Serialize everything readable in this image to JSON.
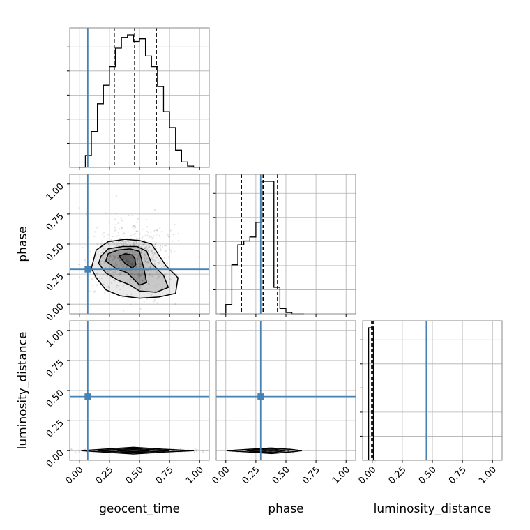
{
  "chart_data": {
    "type": "corner",
    "parameters": [
      "geocent_time",
      "phase",
      "luminosity_distance"
    ],
    "axis_labels": {
      "geocent_time": "geocent_time",
      "phase": "phase",
      "luminosity_distance": "luminosity_distance"
    },
    "ticks": [
      0.0,
      0.25,
      0.5,
      0.75,
      1.0
    ],
    "tick_labels": [
      "0.00",
      "0.25",
      "0.50",
      "0.75",
      "1.00"
    ],
    "grid": true,
    "colors": {
      "truth": "#4682b4",
      "hist": "#000000",
      "contour": "#000000",
      "grid": "#b0b0b0"
    },
    "truths": {
      "geocent_time": 0.07,
      "phase": 0.29,
      "luminosity_distance": 0.45
    },
    "ranges": {
      "geocent_time": [
        -0.08,
        1.08
      ],
      "phase": [
        -0.08,
        1.08
      ],
      "luminosity_distance": [
        -0.08,
        1.08
      ]
    },
    "quantiles": {
      "geocent_time": [
        0.29,
        0.46,
        0.64
      ],
      "phase": [
        0.13,
        0.31,
        0.43
      ],
      "luminosity_distance": [
        -0.005,
        0.002,
        0.012
      ]
    },
    "histograms": {
      "geocent_time": {
        "edges": [
          0.0,
          0.05,
          0.1,
          0.15,
          0.2,
          0.25,
          0.3,
          0.35,
          0.4,
          0.45,
          0.5,
          0.55,
          0.6,
          0.65,
          0.7,
          0.75,
          0.8,
          0.85,
          0.9,
          0.95,
          1.0
        ],
        "counts": [
          0,
          0.09,
          0.27,
          0.48,
          0.62,
          0.76,
          0.9,
          0.98,
          1.0,
          0.95,
          0.97,
          0.84,
          0.76,
          0.61,
          0.42,
          0.3,
          0.13,
          0.04,
          0.01,
          0
        ]
      },
      "phase": {
        "edges": [
          -0.05,
          0.0,
          0.05,
          0.1,
          0.15,
          0.2,
          0.25,
          0.3,
          0.35,
          0.4,
          0.45,
          0.5,
          0.55,
          0.6,
          0.65
        ],
        "counts": [
          0,
          0.07,
          0.37,
          0.52,
          0.55,
          0.58,
          0.69,
          1.0,
          1.0,
          0.2,
          0.04,
          0.01,
          0,
          0
        ]
      },
      "luminosity_distance": {
        "edges": [
          -0.03,
          -0.01,
          0.01,
          0.03
        ],
        "counts": [
          1.0,
          1.0,
          0
        ]
      }
    },
    "scatter_panels": [
      {
        "x": "geocent_time",
        "y": "phase",
        "density_center": [
          0.44,
          0.38
        ],
        "density_spread": [
          0.16,
          0.15
        ],
        "contours": [
          [
            [
              0.1,
              0.3
            ],
            [
              0.14,
              0.22
            ],
            [
              0.22,
              0.12
            ],
            [
              0.34,
              0.07
            ],
            [
              0.5,
              0.05
            ],
            [
              0.66,
              0.06
            ],
            [
              0.8,
              0.09
            ],
            [
              0.82,
              0.22
            ],
            [
              0.72,
              0.32
            ],
            [
              0.64,
              0.44
            ],
            [
              0.6,
              0.5
            ],
            [
              0.5,
              0.53
            ],
            [
              0.38,
              0.54
            ],
            [
              0.24,
              0.52
            ],
            [
              0.14,
              0.45
            ]
          ],
          [
            [
              0.16,
              0.34
            ],
            [
              0.22,
              0.26
            ],
            [
              0.32,
              0.2
            ],
            [
              0.42,
              0.16
            ],
            [
              0.5,
              0.11
            ],
            [
              0.64,
              0.1
            ],
            [
              0.74,
              0.14
            ],
            [
              0.7,
              0.24
            ],
            [
              0.6,
              0.34
            ],
            [
              0.56,
              0.44
            ],
            [
              0.48,
              0.48
            ],
            [
              0.36,
              0.48
            ],
            [
              0.24,
              0.46
            ],
            [
              0.18,
              0.4
            ]
          ],
          [
            [
              0.22,
              0.36
            ],
            [
              0.3,
              0.3
            ],
            [
              0.4,
              0.26
            ],
            [
              0.46,
              0.2
            ],
            [
              0.5,
              0.16
            ],
            [
              0.56,
              0.18
            ],
            [
              0.54,
              0.28
            ],
            [
              0.52,
              0.36
            ],
            [
              0.5,
              0.44
            ],
            [
              0.42,
              0.46
            ],
            [
              0.32,
              0.45
            ],
            [
              0.24,
              0.42
            ]
          ],
          [
            [
              0.33,
              0.4
            ],
            [
              0.38,
              0.34
            ],
            [
              0.44,
              0.3
            ],
            [
              0.47,
              0.33
            ],
            [
              0.46,
              0.38
            ],
            [
              0.44,
              0.41
            ],
            [
              0.38,
              0.42
            ]
          ]
        ]
      },
      {
        "x": "geocent_time",
        "y": "luminosity_distance",
        "density_center": [
          0.45,
          0.0
        ],
        "density_spread": [
          0.2,
          0.008
        ],
        "contours": [
          [
            [
              0.02,
              0.0
            ],
            [
              0.2,
              -0.012
            ],
            [
              0.45,
              -0.028
            ],
            [
              0.7,
              -0.012
            ],
            [
              0.95,
              0.0
            ],
            [
              0.7,
              0.012
            ],
            [
              0.45,
              0.028
            ],
            [
              0.2,
              0.012
            ]
          ],
          [
            [
              0.16,
              0.0
            ],
            [
              0.3,
              -0.009
            ],
            [
              0.45,
              -0.018
            ],
            [
              0.6,
              -0.009
            ],
            [
              0.74,
              0.0
            ],
            [
              0.6,
              0.009
            ],
            [
              0.45,
              0.018
            ],
            [
              0.3,
              0.009
            ]
          ],
          [
            [
              0.32,
              0.0
            ],
            [
              0.45,
              -0.01
            ],
            [
              0.58,
              0.0
            ],
            [
              0.45,
              0.01
            ]
          ]
        ]
      },
      {
        "x": "phase",
        "y": "luminosity_distance",
        "density_center": [
          0.35,
          0.0
        ],
        "density_spread": [
          0.1,
          0.007
        ],
        "contours": [
          [
            [
              0.01,
              0.0
            ],
            [
              0.2,
              -0.012
            ],
            [
              0.38,
              -0.024
            ],
            [
              0.55,
              -0.01
            ],
            [
              0.63,
              0.0
            ],
            [
              0.55,
              0.01
            ],
            [
              0.38,
              0.022
            ],
            [
              0.2,
              0.012
            ]
          ],
          [
            [
              0.18,
              0.0
            ],
            [
              0.3,
              -0.012
            ],
            [
              0.4,
              -0.016
            ],
            [
              0.48,
              0.0
            ],
            [
              0.4,
              0.014
            ],
            [
              0.3,
              0.012
            ]
          ]
        ]
      }
    ]
  }
}
